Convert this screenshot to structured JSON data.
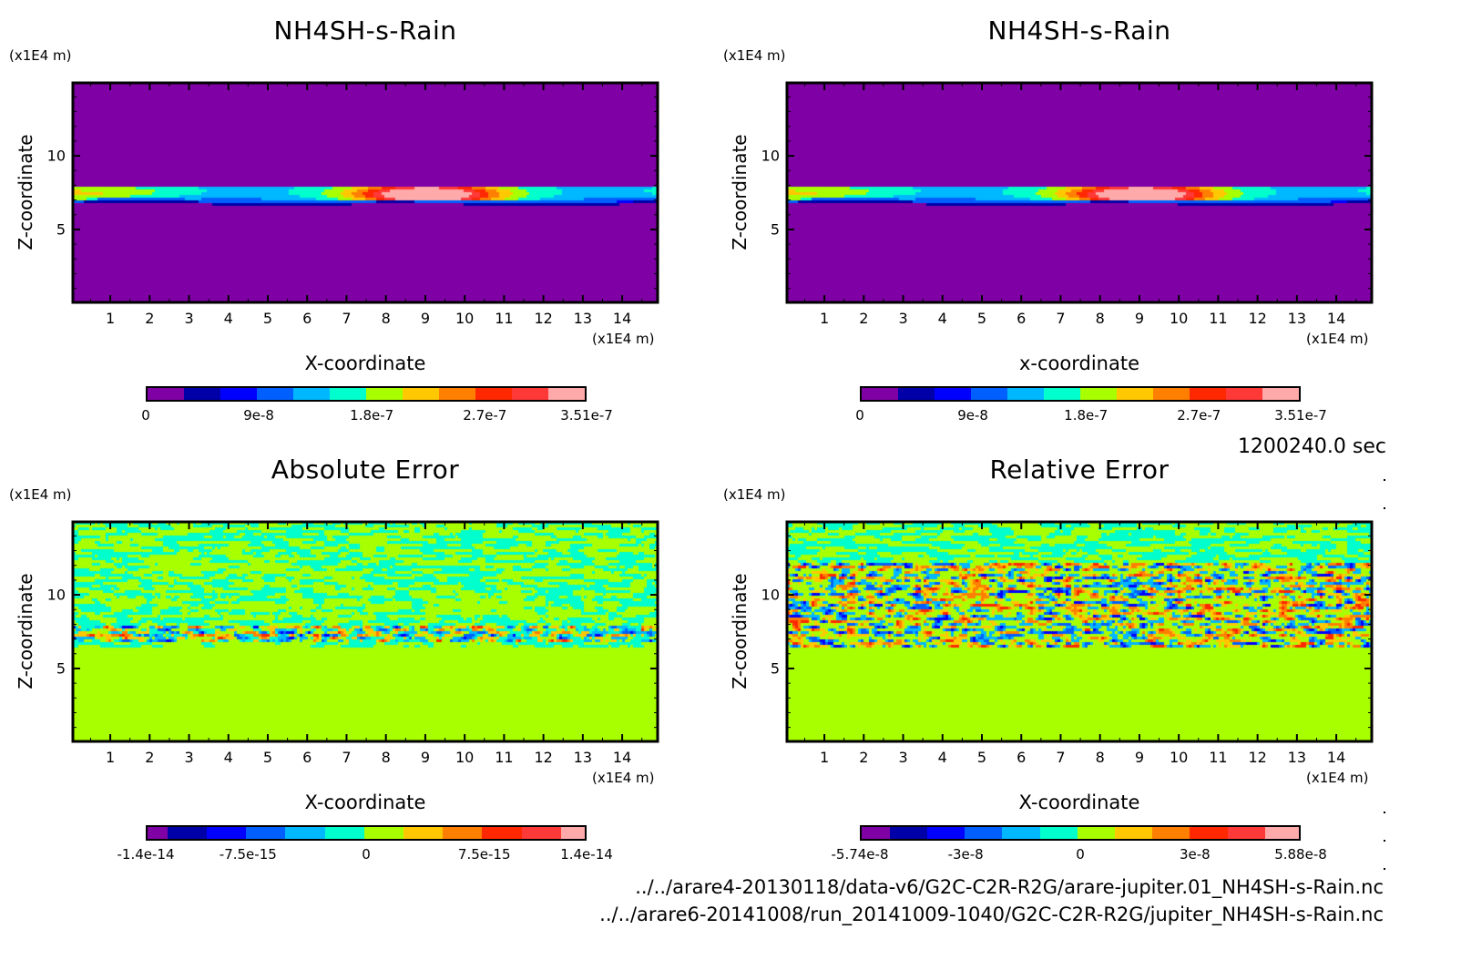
{
  "figure": {
    "time_label": "1200240.0 sec",
    "file_paths": [
      "../../arare4-20130118/data-v6/G2C-C2R-R2G/arare-jupiter.01_NH4SH-s-Rain.nc",
      "../../arare6-20141008/run_20141009-1040/G2C-C2R-R2G/jupiter_NH4SH-s-Rain.nc"
    ]
  },
  "chart_data": [
    {
      "type": "heatmap",
      "title": "NH4SH-s-Rain",
      "xlabel": "X-coordinate",
      "ylabel": "Z-coordinate",
      "x_unit": "(x1E4 m)",
      "y_unit": "(x1E4 m)",
      "xlim": [
        0.05,
        14.9
      ],
      "ylim": [
        0.05,
        14.95
      ],
      "x_ticks": [
        1,
        2,
        3,
        4,
        5,
        6,
        7,
        8,
        9,
        10,
        11,
        12,
        13,
        14
      ],
      "y_ticks": [
        5,
        10
      ],
      "field": "cloud_band",
      "colorbar": {
        "colors": [
          "#7f00a5",
          "#0000a8",
          "#0000ff",
          "#0060ff",
          "#00b8ff",
          "#00ffcc",
          "#a8ff00",
          "#ffc800",
          "#ff7f00",
          "#ff2800",
          "#ff3838",
          "#ffaaaa"
        ],
        "tick_labels": [
          "0",
          "9e-8",
          "1.8e-7",
          "2.7e-7",
          "3.51e-7"
        ],
        "tick_positions": [
          0,
          0.2564,
          0.5128,
          0.7692,
          1.0
        ],
        "range": [
          0,
          3.51e-07
        ]
      },
      "band": {
        "z_top": 8.0,
        "z_bottom": 6.8,
        "peak_x": 9.0,
        "peak_value": 3.51e-07
      }
    },
    {
      "type": "heatmap",
      "title": "NH4SH-s-Rain",
      "xlabel": "x-coordinate",
      "ylabel": "Z-coordinate",
      "x_unit": "(x1E4 m)",
      "y_unit": "(x1E4 m)",
      "xlim": [
        0.05,
        14.9
      ],
      "ylim": [
        0.05,
        14.95
      ],
      "x_ticks": [
        1,
        2,
        3,
        4,
        5,
        6,
        7,
        8,
        9,
        10,
        11,
        12,
        13,
        14
      ],
      "y_ticks": [
        5,
        10
      ],
      "field": "cloud_band",
      "colorbar": {
        "colors": [
          "#7f00a5",
          "#0000a8",
          "#0000ff",
          "#0060ff",
          "#00b8ff",
          "#00ffcc",
          "#a8ff00",
          "#ffc800",
          "#ff7f00",
          "#ff2800",
          "#ff3838",
          "#ffaaaa"
        ],
        "tick_labels": [
          "0",
          "9e-8",
          "1.8e-7",
          "2.7e-7",
          "3.51e-7"
        ],
        "tick_positions": [
          0,
          0.2564,
          0.5128,
          0.7692,
          1.0
        ],
        "range": [
          0,
          3.51e-07
        ]
      },
      "band": {
        "z_top": 8.0,
        "z_bottom": 6.8,
        "peak_x": 9.0,
        "peak_value": 3.51e-07
      }
    },
    {
      "type": "heatmap",
      "title": "Absolute Error",
      "xlabel": "X-coordinate",
      "ylabel": "Z-coordinate",
      "x_unit": "(x1E4 m)",
      "y_unit": "(x1E4 m)",
      "xlim": [
        0.05,
        14.9
      ],
      "ylim": [
        0.05,
        14.95
      ],
      "x_ticks": [
        1,
        2,
        3,
        4,
        5,
        6,
        7,
        8,
        9,
        10,
        11,
        12,
        13,
        14
      ],
      "y_ticks": [
        5,
        10
      ],
      "field": "abs_error_noise",
      "colorbar": {
        "colors": [
          "#7f00a5",
          "#0000a8",
          "#0000ff",
          "#0060ff",
          "#00b8ff",
          "#00ffcc",
          "#a8ff00",
          "#ffc800",
          "#ff7f00",
          "#ff2800",
          "#ff3838",
          "#ffaaaa"
        ],
        "widths": [
          0.5,
          1,
          1,
          1,
          1,
          1,
          1,
          1,
          1,
          1,
          1,
          0.6
        ],
        "tick_labels": [
          "-1.4e-14",
          "-7.5e-15",
          "0",
          "7.5e-15",
          "1.4e-14"
        ],
        "tick_positions": [
          0,
          0.232,
          0.5,
          0.768,
          1.0
        ],
        "range": [
          -1.4e-14,
          1.4e-14
        ]
      },
      "noise_region": {
        "z_bottom": 6.5,
        "z_top": 14.95,
        "strong_band": [
          6.8,
          8.0
        ]
      }
    },
    {
      "type": "heatmap",
      "title": "Relative Error",
      "xlabel": "X-coordinate",
      "ylabel": "Z-coordinate",
      "x_unit": "(x1E4 m)",
      "y_unit": "(x1E4 m)",
      "xlim": [
        0.05,
        14.9
      ],
      "ylim": [
        0.05,
        14.95
      ],
      "x_ticks": [
        1,
        2,
        3,
        4,
        5,
        6,
        7,
        8,
        9,
        10,
        11,
        12,
        13,
        14
      ],
      "y_ticks": [
        5,
        10
      ],
      "field": "rel_error_noise",
      "colorbar": {
        "colors": [
          "#7f00a5",
          "#0000a8",
          "#0000ff",
          "#0060ff",
          "#00b8ff",
          "#00ffcc",
          "#a8ff00",
          "#ffc800",
          "#ff7f00",
          "#ff2800",
          "#ff3838",
          "#ffaaaa"
        ],
        "widths": [
          0.75,
          1,
          1,
          1,
          1,
          1,
          1,
          1,
          1,
          1,
          1,
          0.9
        ],
        "tick_labels": [
          "-5.74e-8",
          "-3e-8",
          "0",
          "3e-8",
          "5.88e-8"
        ],
        "tick_positions": [
          0,
          0.24,
          0.5,
          0.76,
          1.0
        ],
        "range": [
          -5.74e-08,
          5.88e-08
        ]
      },
      "noise_region": {
        "z_bottom": 6.5,
        "z_top": 14.95,
        "strong_band": [
          6.5,
          12.3
        ]
      }
    }
  ]
}
